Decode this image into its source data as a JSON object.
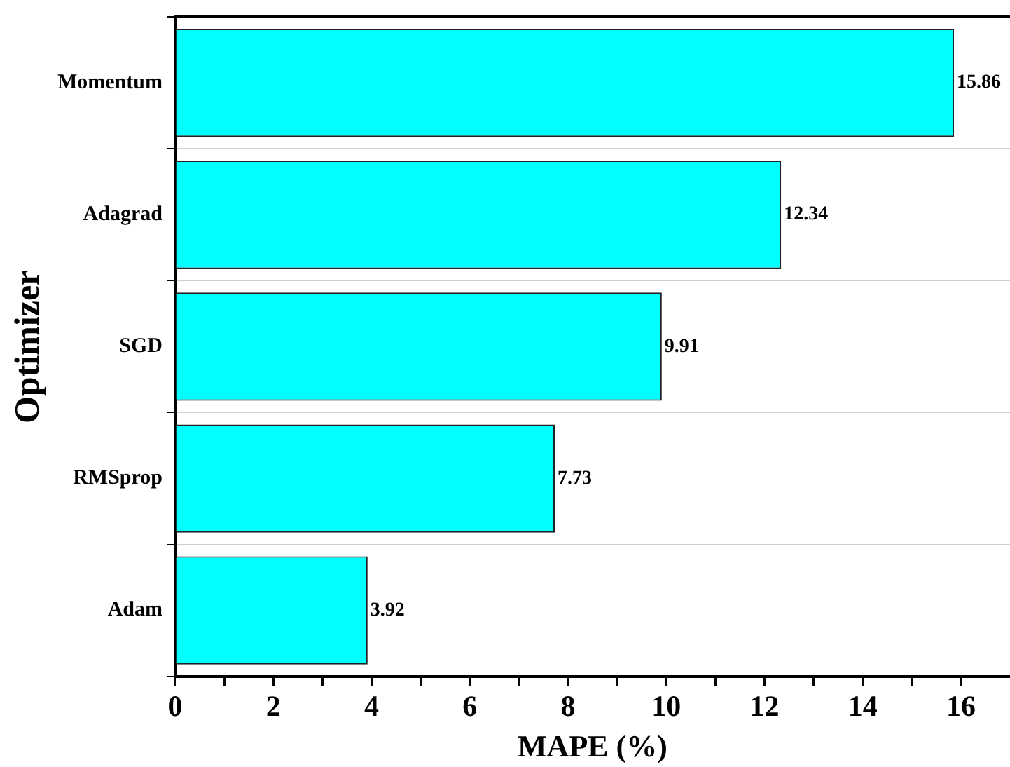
{
  "chart_data": {
    "type": "bar",
    "orientation": "horizontal",
    "xlabel": "MAPE (%)",
    "ylabel": "Optimizer",
    "categories": [
      "Momentum",
      "Adagrad",
      "SGD",
      "RMSprop",
      "Adam"
    ],
    "values": [
      15.86,
      12.34,
      9.91,
      7.73,
      3.92
    ],
    "color": "#00ffff",
    "data_labels": true,
    "grid": "y",
    "legend": false,
    "xlim": [
      0,
      17
    ],
    "xticks": [
      0,
      {
        "value": 1,
        "label": null
      },
      2,
      {
        "value": 3,
        "label": null
      },
      4,
      {
        "value": 5,
        "label": null
      },
      6,
      {
        "value": 7,
        "label": null
      },
      8,
      {
        "value": 9,
        "label": null
      },
      10,
      {
        "value": 11,
        "label": null
      },
      12,
      {
        "value": 13,
        "label": null
      },
      14,
      {
        "value": 15,
        "label": null
      },
      16
    ]
  }
}
